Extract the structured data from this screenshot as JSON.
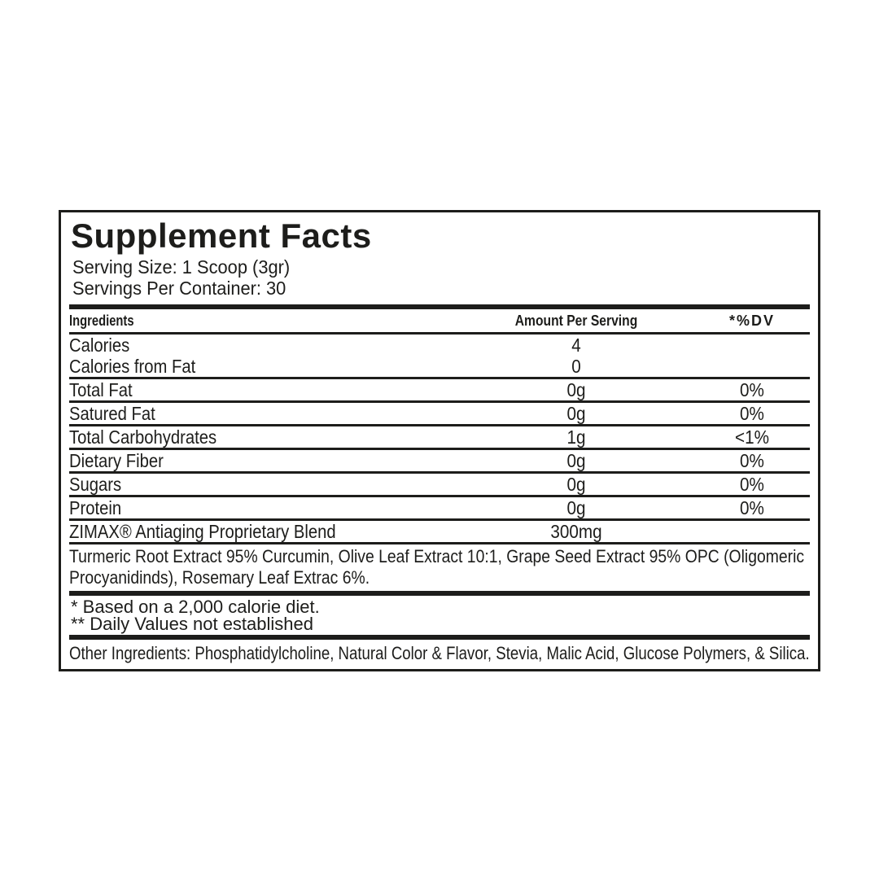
{
  "colors": {
    "ink": "#1d1d1b",
    "background": "#ffffff"
  },
  "label": {
    "title": "Supplement Facts",
    "serving_size": "Serving Size: 1 Scoop (3gr)",
    "servings_per_container": "Servings Per Container: 30",
    "table": {
      "headers": {
        "ingredients": "Ingredients",
        "amount_per_serving": "Amount Per Serving",
        "daily_value": "*%DV"
      },
      "rows": [
        {
          "name": "Calories",
          "amount": "4",
          "dv": ""
        },
        {
          "name": "Calories from Fat",
          "amount": "0",
          "dv": ""
        },
        {
          "name": "Total Fat",
          "amount": "0g",
          "dv": "0%"
        },
        {
          "name": "Satured Fat",
          "amount": "0g",
          "dv": "0%"
        },
        {
          "name": "Total Carbohydrates",
          "amount": "1g",
          "dv": "<1%"
        },
        {
          "name": "Dietary Fiber",
          "amount": "0g",
          "dv": "0%"
        },
        {
          "name": "Sugars",
          "amount": "0g",
          "dv": "0%"
        },
        {
          "name": "Protein",
          "amount": "0g",
          "dv": "0%"
        },
        {
          "name": "ZIMAX® Antiaging Proprietary Blend",
          "amount": "300mg",
          "dv": ""
        }
      ]
    },
    "blend_description": {
      "line1": "Turmeric Root Extract 95% Curcumin, Olive Leaf Extract 10:1, Grape Seed Extract 95% OPC (Oligomeric",
      "line2": "Procyanidinds), Rosemary Leaf Extrac 6%."
    },
    "footnotes": {
      "line1": "* Based on a 2,000 calorie diet.",
      "line2": "** Daily Values not established"
    },
    "other_ingredients": "Other Ingredients: Phosphatidylcholine, Natural Color & Flavor, Stevia, Malic Acid, Glucose Polymers, & Silica."
  }
}
